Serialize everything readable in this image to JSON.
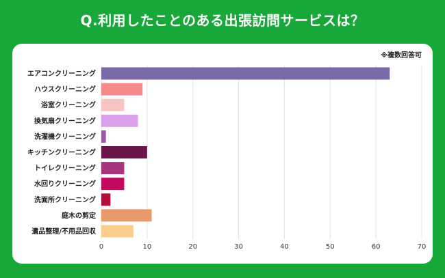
{
  "header": {
    "title": "Q.利用したことのある出張訪問サービスは？",
    "note": "※複数回答可"
  },
  "colors": {
    "background": "#18a83a",
    "card": "#ffffff",
    "grid": "#e3e3e3"
  },
  "chart_data": {
    "type": "bar",
    "orientation": "horizontal",
    "title": "Q.利用したことのある出張訪問サービスは？",
    "xlabel": "",
    "ylabel": "",
    "xlim": [
      0,
      70
    ],
    "xticks": [
      0,
      10,
      20,
      30,
      40,
      50,
      60,
      70
    ],
    "grid": true,
    "categories": [
      "エアコンクリーニング",
      "ハウスクリーニング",
      "浴室クリーニング",
      "換気扇クリーニング",
      "洗濯機クリーニング",
      "キッチンクリーニング",
      "トイレクリーニング",
      "水回りクリーニング",
      "洗面所クリーニング",
      "庭木の剪定",
      "遺品整理/不用品回収"
    ],
    "values": [
      63,
      9,
      5,
      8,
      1,
      10,
      5,
      5,
      2,
      11,
      7
    ],
    "bar_colors": [
      "#7b6aa8",
      "#f58a8a",
      "#f7c4c4",
      "#dba0ea",
      "#9a5aa8",
      "#6a1448",
      "#a8347e",
      "#c20a5e",
      "#b0103a",
      "#e8996a",
      "#fbcd8a"
    ]
  }
}
